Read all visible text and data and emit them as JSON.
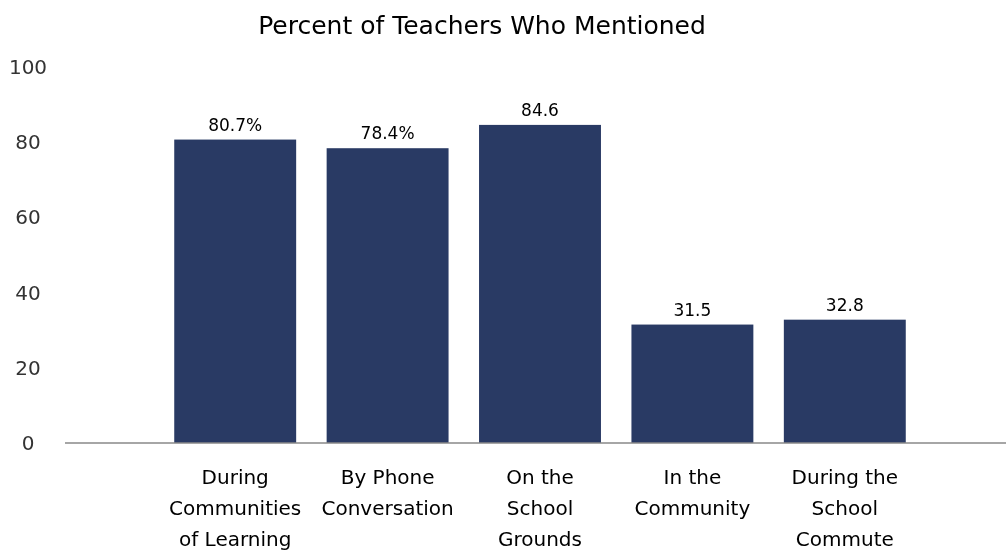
{
  "chart_data": {
    "type": "bar",
    "title": "Percent of Teachers Who Mentioned",
    "categories": [
      "During Communities of Learning",
      "By Phone Conversation",
      "On the School Grounds",
      "In the Community",
      "During the School Commute"
    ],
    "values": [
      80.7,
      78.4,
      84.6,
      31.5,
      32.8
    ],
    "value_labels": [
      "80.7%",
      "78.4%",
      "84.6",
      "31.5",
      "32.8"
    ],
    "color": "#293a64",
    "ylim": [
      0,
      100
    ],
    "yticks": [
      0,
      20,
      40,
      60,
      80,
      100
    ],
    "grid": false
  }
}
